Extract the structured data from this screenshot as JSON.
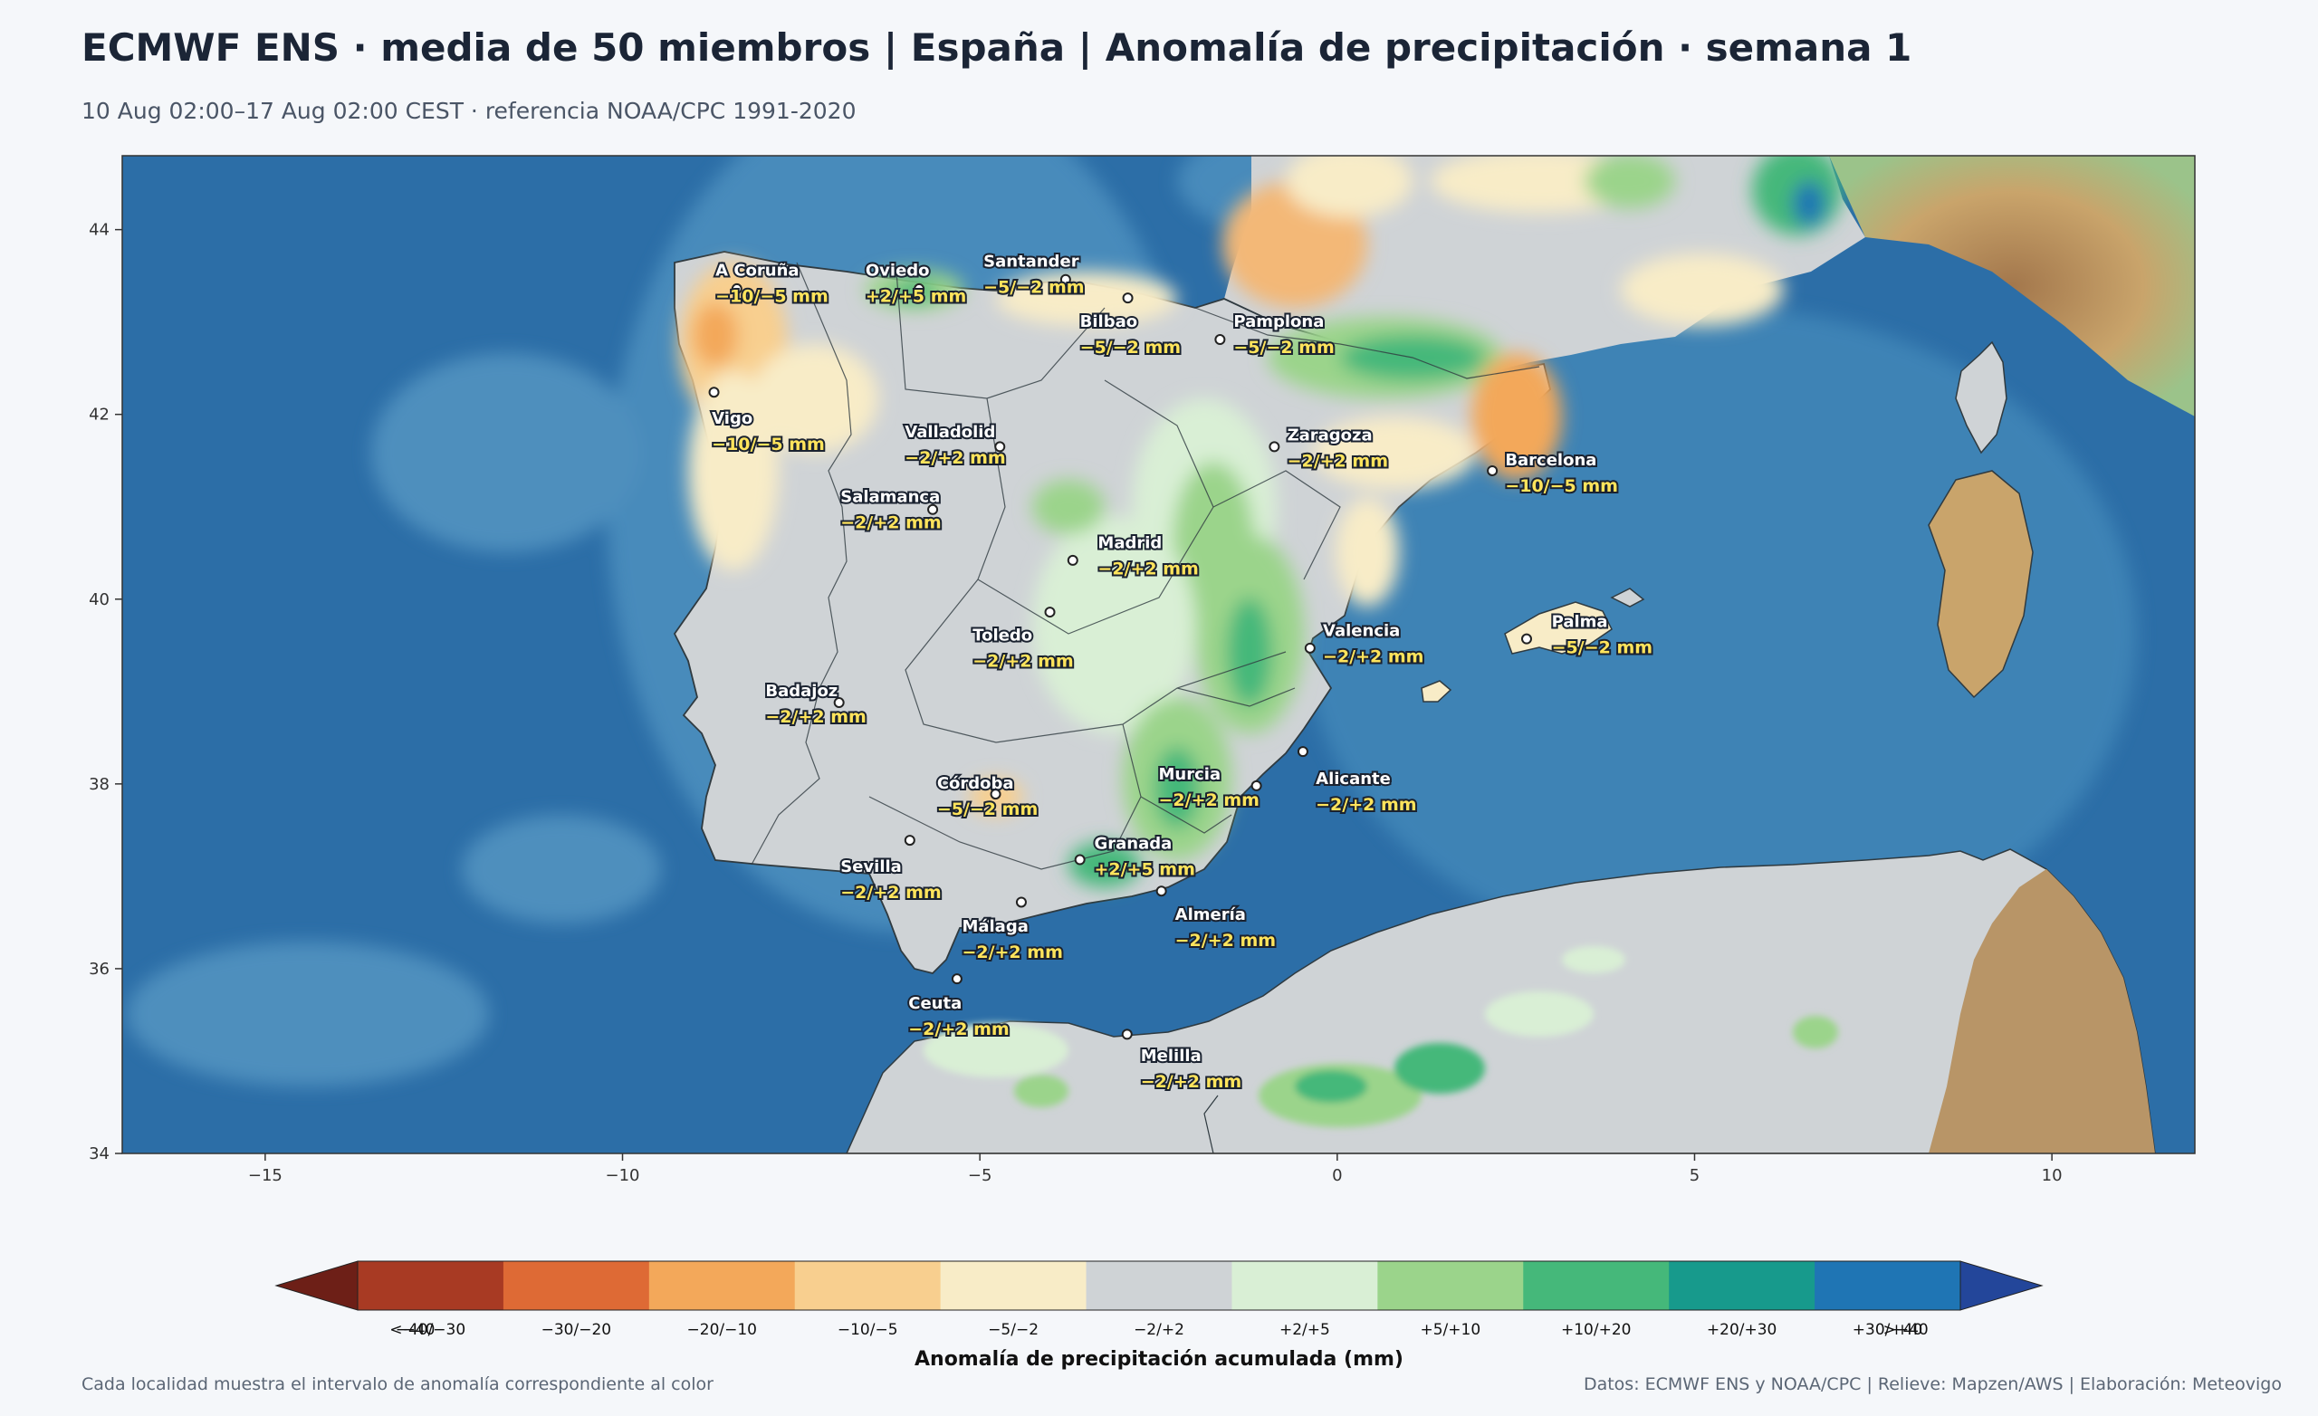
{
  "header": {
    "title": "ECMWF ENS · media de 50 miembros | España | Anomalía de precipitación · semana 1",
    "subtitle": "10 Aug 02:00–17 Aug 02:00 CEST · referencia NOAA/CPC 1991-2020"
  },
  "map": {
    "lon_range": [
      -17,
      12
    ],
    "lat_range": [
      34,
      44.8
    ],
    "lon_ticks": [
      -15,
      -10,
      -5,
      0,
      5,
      10
    ],
    "lat_ticks": [
      34,
      36,
      38,
      40,
      42,
      44
    ],
    "lon_tick_labels": [
      "−15",
      "−10",
      "−5",
      "0",
      "5",
      "10"
    ],
    "lat_tick_labels": [
      "34",
      "36",
      "38",
      "40",
      "42",
      "44"
    ],
    "colors": {
      "sea": "#3f86b9",
      "sea_deep": "#2a6aa3",
      "land_neutral": "#cfd3d6",
      "border": "#2f3a40"
    }
  },
  "cities": [
    {
      "name": "A Coruña",
      "value": "−10/−5 mm",
      "lon": -8.4,
      "lat": 43.36,
      "lx": -8.7,
      "ly": 43.5
    },
    {
      "name": "Oviedo",
      "value": "+2/+5 mm",
      "lon": -5.85,
      "lat": 43.36,
      "lx": -6.6,
      "ly": 43.5
    },
    {
      "name": "Santander",
      "value": "−5/−2 mm",
      "lon": -3.8,
      "lat": 43.46,
      "lx": -4.95,
      "ly": 43.6
    },
    {
      "name": "Bilbao",
      "value": "−5/−2 mm",
      "lon": -2.93,
      "lat": 43.26,
      "lx": -3.6,
      "ly": 42.95
    },
    {
      "name": "Pamplona",
      "value": "−5/−2 mm",
      "lon": -1.64,
      "lat": 42.81,
      "lx": -1.45,
      "ly": 42.95
    },
    {
      "name": "Vigo",
      "value": "−10/−5 mm",
      "lon": -8.72,
      "lat": 42.24,
      "lx": -8.75,
      "ly": 41.9
    },
    {
      "name": "Valladolid",
      "value": "−2/+2 mm",
      "lon": -4.72,
      "lat": 41.65,
      "lx": -6.05,
      "ly": 41.75
    },
    {
      "name": "Zaragoza",
      "value": "−2/+2 mm",
      "lon": -0.88,
      "lat": 41.65,
      "lx": -0.7,
      "ly": 41.72
    },
    {
      "name": "Barcelona",
      "value": "−10/−5 mm",
      "lon": 2.17,
      "lat": 41.39,
      "lx": 2.35,
      "ly": 41.45
    },
    {
      "name": "Salamanca",
      "value": "−2/+2 mm",
      "lon": -5.66,
      "lat": 40.97,
      "lx": -6.95,
      "ly": 41.05
    },
    {
      "name": "Madrid",
      "value": "−2/+2 mm",
      "lon": -3.7,
      "lat": 40.42,
      "lx": -3.35,
      "ly": 40.55
    },
    {
      "name": "Toledo",
      "value": "−2/+2 mm",
      "lon": -4.02,
      "lat": 39.86,
      "lx": -5.1,
      "ly": 39.55
    },
    {
      "name": "Valencia",
      "value": "−2/+2 mm",
      "lon": -0.38,
      "lat": 39.47,
      "lx": -0.2,
      "ly": 39.6
    },
    {
      "name": "Palma",
      "value": "−5/−2 mm",
      "lon": 2.65,
      "lat": 39.57,
      "lx": 3.0,
      "ly": 39.7
    },
    {
      "name": "Badajoz",
      "value": "−2/+2 mm",
      "lon": -6.97,
      "lat": 38.88,
      "lx": -8.0,
      "ly": 38.95
    },
    {
      "name": "Córdoba",
      "value": "−5/−2 mm",
      "lon": -4.78,
      "lat": 37.89,
      "lx": -5.6,
      "ly": 37.95
    },
    {
      "name": "Murcia",
      "value": "−2/+2 mm",
      "lon": -1.13,
      "lat": 37.98,
      "lx": -2.5,
      "ly": 38.05
    },
    {
      "name": "Alicante",
      "value": "−2/+2 mm",
      "lon": -0.48,
      "lat": 38.35,
      "lx": -0.3,
      "ly": 38.0
    },
    {
      "name": "Granada",
      "value": "+2/+5 mm",
      "lon": -3.6,
      "lat": 37.18,
      "lx": -3.4,
      "ly": 37.3
    },
    {
      "name": "Sevilla",
      "value": "−2/+2 mm",
      "lon": -5.98,
      "lat": 37.39,
      "lx": -6.95,
      "ly": 37.05
    },
    {
      "name": "Almería",
      "value": "−2/+2 mm",
      "lon": -2.46,
      "lat": 36.84,
      "lx": -2.27,
      "ly": 36.53
    },
    {
      "name": "Málaga",
      "value": "−2/+2 mm",
      "lon": -4.42,
      "lat": 36.72,
      "lx": -5.25,
      "ly": 36.4
    },
    {
      "name": "Ceuta",
      "value": "−2/+2 mm",
      "lon": -5.32,
      "lat": 35.89,
      "lx": -6.0,
      "ly": 35.57
    },
    {
      "name": "Melilla",
      "value": "−2/+2 mm",
      "lon": -2.94,
      "lat": 35.29,
      "lx": -2.75,
      "ly": 35.0
    }
  ],
  "colorbar": {
    "label": "Anomalía de precipitación acumulada (mm)",
    "bins": [
      {
        "label": "<−40",
        "color": "#6d1f17"
      },
      {
        "label": "−40/−30",
        "color": "#a83a23"
      },
      {
        "label": "−30/−20",
        "color": "#de6a35"
      },
      {
        "label": "−20/−10",
        "color": "#f3a85a"
      },
      {
        "label": "−10/−5",
        "color": "#f8cf8f"
      },
      {
        "label": "−5/−2",
        "color": "#f8ecc7"
      },
      {
        "label": "−2/+2",
        "color": "#cfd3d6"
      },
      {
        "label": "+2/+5",
        "color": "#d9efd5"
      },
      {
        "label": "+5/+10",
        "color": "#9bd48b"
      },
      {
        "label": "+10/+20",
        "color": "#45b87a"
      },
      {
        "label": "+20/+30",
        "color": "#179a8c"
      },
      {
        "label": "+30/+40",
        "color": "#1f75b4"
      },
      {
        "label": ">+40",
        "color": "#23469a"
      }
    ]
  },
  "footer": {
    "left": "Cada localidad muestra el intervalo de anomalía correspondiente al color",
    "right": "Datos: ECMWF ENS y NOAA/CPC | Relieve: Mapzen/AWS | Elaboración: Meteovigo"
  }
}
